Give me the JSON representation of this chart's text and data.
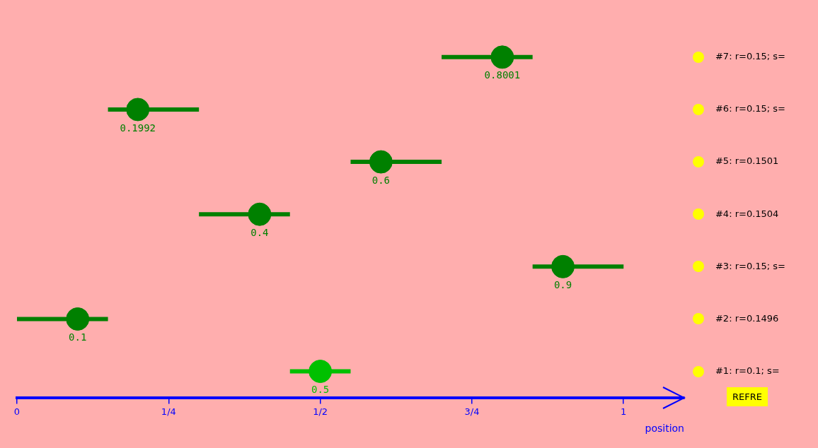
{
  "chart_data": {
    "type": "scatter",
    "orientation": "horizontal",
    "categories": [
      "#7: r=0.15; s=",
      "#6: r=0.15; s=",
      "#5: r=0.1501",
      "#4: r=0.1504",
      "#3: r=0.15; s=",
      "#2: r=0.1496",
      "#1: r=0.1; s="
    ],
    "values": [
      0.8001,
      0.1992,
      0.6,
      0.4,
      0.9,
      0.1,
      0.5
    ],
    "errors": [
      [
        0.7,
        0.85
      ],
      [
        0.15,
        0.3
      ],
      [
        0.55,
        0.7
      ],
      [
        0.3,
        0.45
      ],
      [
        0.85,
        1.0
      ],
      [
        0,
        0.15
      ],
      [
        0.45,
        0.55
      ]
    ],
    "colors": [
      "#008000",
      "#008000",
      "#008000",
      "#008000",
      "#008000",
      "#008000",
      "#00c000"
    ],
    "data_labels": true,
    "marker": "circle",
    "xlim": [
      0,
      1.1
    ],
    "xticks": [
      {
        "value": 0,
        "label": "0"
      },
      {
        "value": 0.25,
        "label": "1/4"
      },
      {
        "value": 0.5,
        "label": "1/2"
      },
      {
        "value": 0.75,
        "label": "3/4"
      },
      {
        "value": 1,
        "label": "1"
      }
    ],
    "xlabel": "position",
    "annotations": [
      "REFRE"
    ],
    "legend": false
  }
}
